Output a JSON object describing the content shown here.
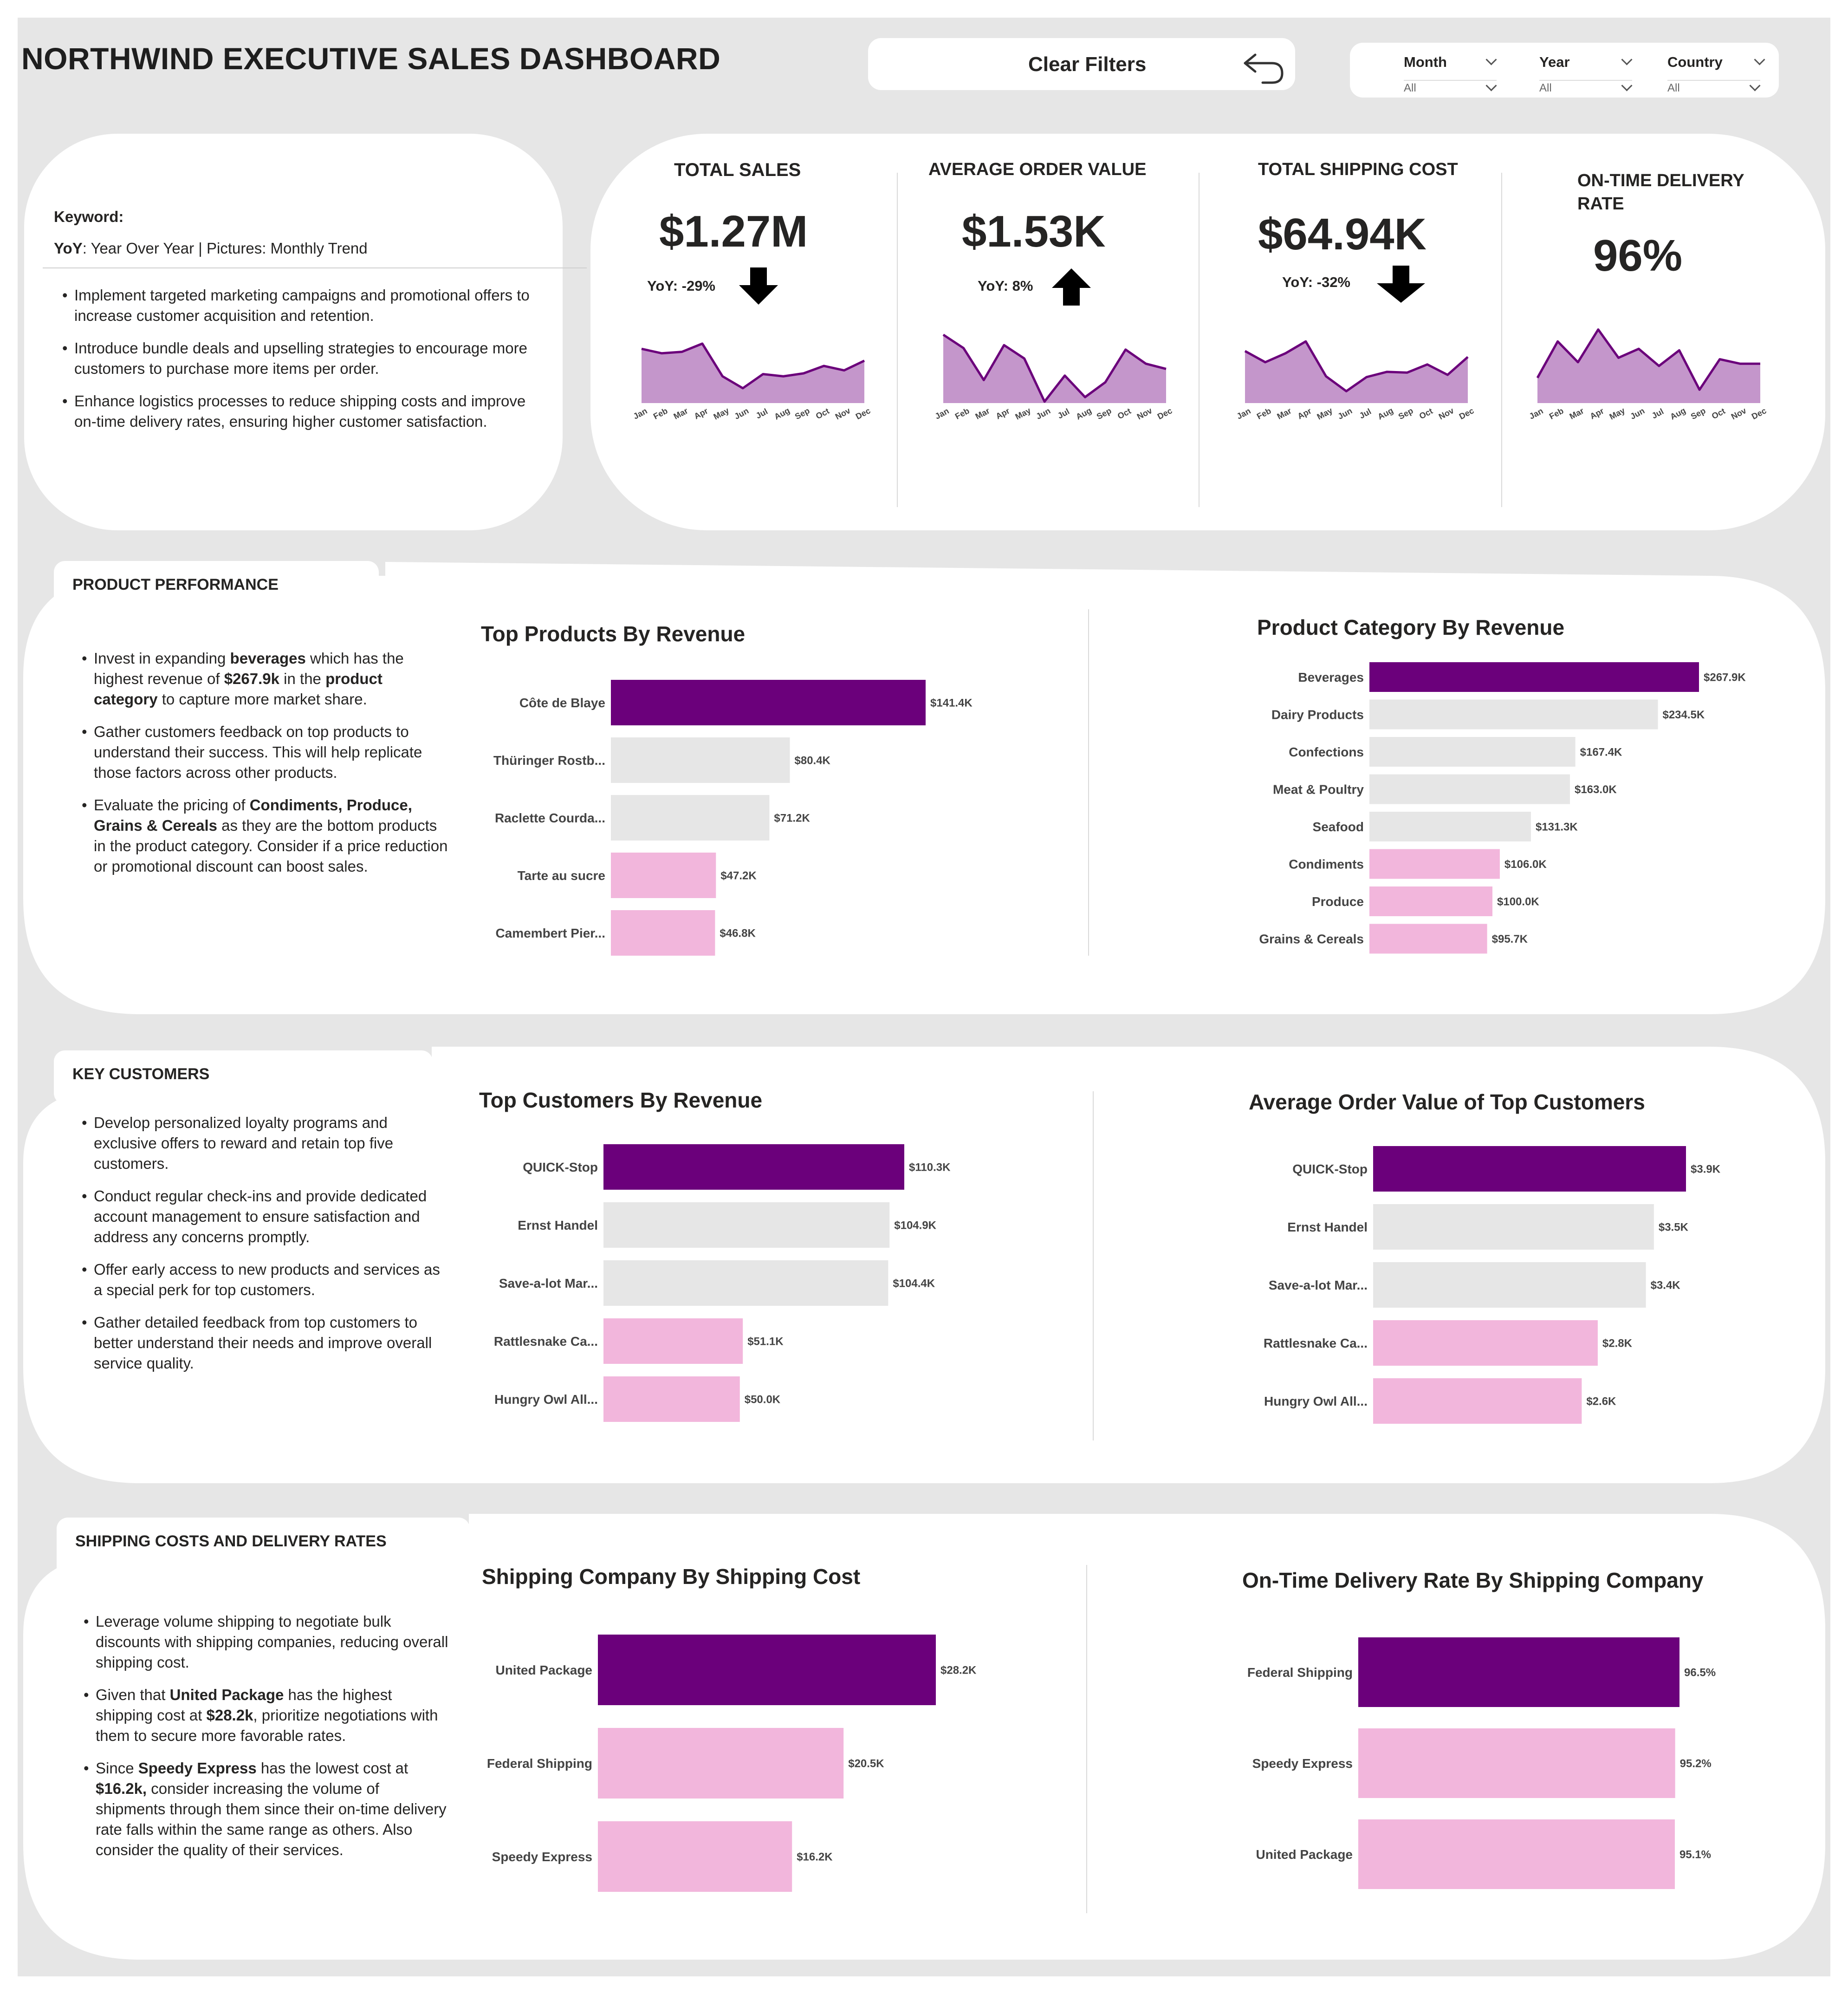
{
  "header": {
    "title": "NORTHWIND EXECUTIVE SALES DASHBOARD",
    "clear_filters": "Clear Filters",
    "filters": [
      {
        "name": "Month",
        "value": "All"
      },
      {
        "name": "Year",
        "value": "All"
      },
      {
        "name": "Country",
        "value": "All"
      }
    ]
  },
  "keyword": {
    "label": "Keyword:",
    "yoy_abbr": "YoY",
    "legend_rest": ": Year Over Year | Pictures: Monthly Trend",
    "bullets": [
      "Implement targeted marketing campaigns and promotional offers to increase customer acquisition and retention.",
      " Introduce bundle deals and upselling strategies  to encourage more customers to purchase more items per order.",
      "Enhance logistics processes to reduce shipping costs and improve on-time delivery rates, ensuring higher customer satisfaction."
    ]
  },
  "kpis": [
    {
      "title": "TOTAL SALES",
      "value": "$1.27M",
      "yoy": "YoY: -29%",
      "direction": "down"
    },
    {
      "title": "AVERAGE ORDER VALUE",
      "value": "$1.53K",
      "yoy": "YoY: 8%",
      "direction": "up"
    },
    {
      "title": "TOTAL SHIPPING COST",
      "value": "$64.94K",
      "yoy": "YoY: -32%",
      "direction": "down"
    },
    {
      "title": "ON-TIME DELIVERY RATE",
      "value": "96%",
      "yoy": "",
      "direction": "none"
    }
  ],
  "sections": {
    "product": {
      "tab": "PRODUCT PERFORMANCE",
      "bullets": [
        [
          {
            "t": "Invest in expanding "
          },
          {
            "t": "beverages",
            "b": true
          },
          {
            "t": " which has the highest revenue of "
          },
          {
            "t": "$267.9k",
            "b": true
          },
          {
            "t": "  in the "
          },
          {
            "t": "product category",
            "b": true
          },
          {
            "t": " to capture more market share."
          }
        ],
        [
          {
            "t": "Gather  customers feedback on top products to understand their success.  This will help replicate those factors across other products."
          }
        ],
        [
          {
            "t": "Evaluate the pricing of "
          },
          {
            "t": "Condiments, Produce, Grains & Cereals",
            "b": true
          },
          {
            "t": " as they are the bottom products in the product category. Consider if  a price reduction or promotional discount can boost sales."
          }
        ]
      ]
    },
    "customers": {
      "tab": "KEY CUSTOMERS",
      "bullets": [
        [
          {
            "t": "Develop personalized loyalty programs and exclusive offers to reward and retain top five customers."
          }
        ],
        [
          {
            "t": "Conduct regular check-ins and provide dedicated account management to ensure satisfaction and address any concerns promptly."
          }
        ],
        [
          {
            "t": "Offer early access to new products and services as a special perk for top customers."
          }
        ],
        [
          {
            "t": "Gather detailed feedback from top customers to better understand their needs and improve overall service quality."
          }
        ]
      ]
    },
    "shipping": {
      "tab": "SHIPPING COSTS AND DELIVERY RATES",
      "bullets": [
        [
          {
            "t": "Leverage volume shipping to negotiate bulk discounts with shipping companies, reducing overall shipping cost."
          }
        ],
        [
          {
            "t": "Given that "
          },
          {
            "t": "United Package",
            "b": true
          },
          {
            "t": "  has the highest shipping cost at "
          },
          {
            "t": "$28.2k",
            "b": true
          },
          {
            "t": ", prioritize negotiations with them to secure more favorable rates."
          }
        ],
        [
          {
            "t": "Since "
          },
          {
            "t": "Speedy Express",
            "b": true
          },
          {
            "t": " has the lowest cost at "
          },
          {
            "t": "$16.2k,",
            "b": true
          },
          {
            "t": " consider increasing the volume of shipments through them since their on-time delivery rate falls within the same range as others. Also consider the quality of their services."
          }
        ]
      ]
    }
  },
  "colors": {
    "top": "#6b007b",
    "mid": "#e6e6e6",
    "low": "#f2b6dc",
    "area": "#c496cb",
    "line": "#6b007b"
  },
  "chart_data": [
    {
      "id": "spark-sales",
      "type": "area",
      "title": "",
      "x": [
        "Jan",
        "Feb",
        "Mar",
        "Apr",
        "May",
        "Jun",
        "Jul",
        "Aug",
        "Sep",
        "Oct",
        "Nov",
        "Dec"
      ],
      "values": [
        0.73,
        0.67,
        0.69,
        0.8,
        0.36,
        0.2,
        0.39,
        0.36,
        0.4,
        0.5,
        0.44,
        0.57
      ],
      "ylim": [
        0,
        1
      ]
    },
    {
      "id": "spark-aov",
      "type": "area",
      "title": "",
      "x": [
        "Jan",
        "Feb",
        "Mar",
        "Apr",
        "May",
        "Jun",
        "Jul",
        "Aug",
        "Sep",
        "Oct",
        "Nov",
        "Dec"
      ],
      "values": [
        0.92,
        0.74,
        0.31,
        0.78,
        0.6,
        0.02,
        0.37,
        0.08,
        0.28,
        0.72,
        0.53,
        0.46
      ],
      "ylim": [
        0,
        1
      ]
    },
    {
      "id": "spark-ship",
      "type": "area",
      "title": "",
      "x": [
        "Jan",
        "Feb",
        "Mar",
        "Apr",
        "May",
        "Jun",
        "Jul",
        "Aug",
        "Sep",
        "Oct",
        "Nov",
        "Dec"
      ],
      "values": [
        0.7,
        0.55,
        0.67,
        0.83,
        0.36,
        0.16,
        0.35,
        0.42,
        0.41,
        0.52,
        0.38,
        0.62
      ],
      "ylim": [
        0,
        1
      ]
    },
    {
      "id": "spark-otd",
      "type": "area",
      "title": "",
      "x": [
        "Jan",
        "Feb",
        "Mar",
        "Apr",
        "May",
        "Jun",
        "Jul",
        "Aug",
        "Sep",
        "Oct",
        "Nov",
        "Dec"
      ],
      "values": [
        0.34,
        0.83,
        0.55,
        0.99,
        0.61,
        0.73,
        0.5,
        0.71,
        0.18,
        0.59,
        0.53,
        0.53
      ],
      "ylim": [
        0,
        1
      ]
    },
    {
      "id": "top-products",
      "type": "bar",
      "orientation": "horizontal",
      "title": "Top Products By Revenue",
      "categories": [
        "Côte de Blaye",
        "Thüringer Rostb...",
        "Raclette Courda...",
        "Tarte au sucre",
        "Camembert Pier..."
      ],
      "values": [
        141.4,
        80.4,
        71.2,
        47.2,
        46.8
      ],
      "labels": [
        "$141.4K",
        "$80.4K",
        "$71.2K",
        "$47.2K",
        "$46.8K"
      ],
      "tiers": [
        "top",
        "mid",
        "mid",
        "low",
        "low"
      ]
    },
    {
      "id": "product-category",
      "type": "bar",
      "orientation": "horizontal",
      "title": "Product Category By Revenue",
      "categories": [
        "Beverages",
        "Dairy Products",
        "Confections",
        "Meat & Poultry",
        "Seafood",
        "Condiments",
        "Produce",
        "Grains & Cereals"
      ],
      "values": [
        267.9,
        234.5,
        167.4,
        163.0,
        131.3,
        106.0,
        100.0,
        95.7
      ],
      "labels": [
        "$267.9K",
        "$234.5K",
        "$167.4K",
        "$163.0K",
        "$131.3K",
        "$106.0K",
        "$100.0K",
        "$95.7K"
      ],
      "tiers": [
        "top",
        "mid",
        "mid",
        "mid",
        "mid",
        "low",
        "low",
        "low"
      ]
    },
    {
      "id": "top-customers",
      "type": "bar",
      "orientation": "horizontal",
      "title": "Top Customers By Revenue",
      "categories": [
        "QUICK-Stop",
        "Ernst Handel",
        "Save-a-lot Mar...",
        "Rattlesnake Ca...",
        "Hungry Owl All..."
      ],
      "values": [
        110.3,
        104.9,
        104.4,
        51.1,
        50.0
      ],
      "labels": [
        "$110.3K",
        "$104.9K",
        "$104.4K",
        "$51.1K",
        "$50.0K"
      ],
      "tiers": [
        "top",
        "mid",
        "mid",
        "low",
        "low"
      ]
    },
    {
      "id": "aov-customers",
      "type": "bar",
      "orientation": "horizontal",
      "title": "Average Order Value of Top Customers",
      "categories": [
        "QUICK-Stop",
        "Ernst Handel",
        "Save-a-lot Mar...",
        "Rattlesnake Ca...",
        "Hungry Owl All..."
      ],
      "values": [
        3.9,
        3.5,
        3.4,
        2.8,
        2.6
      ],
      "labels": [
        "$3.9K",
        "$3.5K",
        "$3.4K",
        "$2.8K",
        "$2.6K"
      ],
      "tiers": [
        "top",
        "mid",
        "mid",
        "low",
        "low"
      ]
    },
    {
      "id": "ship-cost",
      "type": "bar",
      "orientation": "horizontal",
      "title": "Shipping Company By Shipping Cost",
      "categories": [
        "United Package",
        "Federal Shipping",
        "Speedy Express"
      ],
      "values": [
        28.2,
        20.5,
        16.2
      ],
      "labels": [
        "$28.2K",
        "$20.5K",
        "$16.2K"
      ],
      "tiers": [
        "top",
        "low",
        "low"
      ]
    },
    {
      "id": "otd-company",
      "type": "bar",
      "orientation": "horizontal",
      "title": "On-Time Delivery Rate By Shipping Company",
      "categories": [
        "Federal Shipping",
        "Speedy Express",
        "United Package"
      ],
      "values": [
        96.5,
        95.2,
        95.1
      ],
      "labels": [
        "96.5%",
        "95.2%",
        "95.1%"
      ],
      "tiers": [
        "top",
        "low",
        "low"
      ]
    }
  ]
}
